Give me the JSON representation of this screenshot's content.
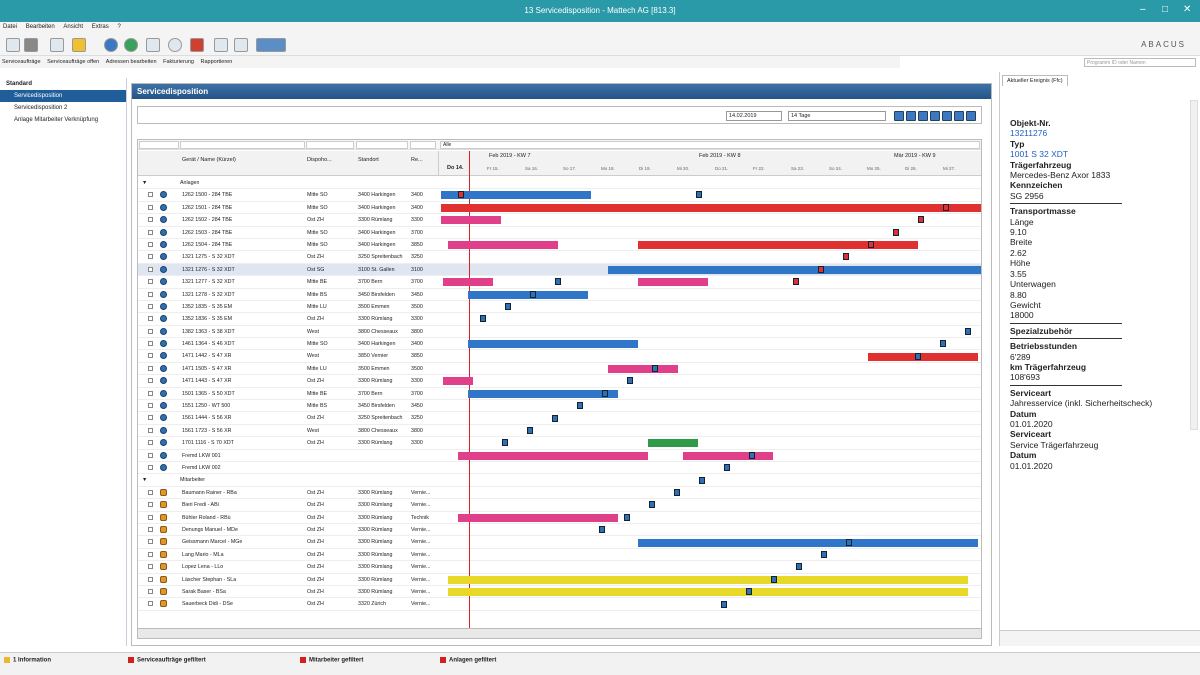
{
  "window": {
    "title": "13 Servicedisposition - Mattech AG [813.3]"
  },
  "menu": [
    "Datei",
    "Bearbeiten",
    "Ansicht",
    "Extras",
    "?"
  ],
  "actions": [
    "Serviceaufträge",
    "Serviceaufträge offen",
    "Adressen bearbeiten",
    "Fakturierung",
    "Rapportieren"
  ],
  "brand": {
    "name": "ABACUS",
    "search_placeholder": "Programm ID oder Namen"
  },
  "sidebar": {
    "header": "Standard",
    "items": [
      "Servicedisposition",
      "Servicedisposition 2",
      "Anlage Mitarbeiter Verknüpfung"
    ]
  },
  "panel": {
    "title": "Servicedisposition"
  },
  "filter": {
    "date": "14.02.2019",
    "range": "14 Tage",
    "alle": "Alle"
  },
  "grid": {
    "columns": [
      "Gerät / Name (Kürzel)",
      "Dispoho...",
      "Standort",
      "Re..."
    ],
    "weeks": [
      "Feb 2019 - KW 7",
      "Feb 2019 - KW 8",
      "Mär 2019 - KW 9"
    ],
    "today": "Do 14.",
    "days": [
      "Fr 15.",
      "Sa 16.",
      "So 17.",
      "Mo 18.",
      "Di 19.",
      "Mi 20.",
      "Do 21.",
      "Fr 22.",
      "Sa 23.",
      "So 24.",
      "Mo 25.",
      "Di 26.",
      "Mi 27."
    ],
    "groups": {
      "anlagen": "Anlagen",
      "mitarbeiter": "Mitarbeiter"
    },
    "anlagen": [
      [
        "1262 1500 - 284 TBE",
        "Mitte SO",
        "3400 Harkingen",
        "3400"
      ],
      [
        "1262 1501 - 284 TBE",
        "Mitte SO",
        "3400 Harkingen",
        "3400"
      ],
      [
        "1262 1502 - 284 TBE",
        "Ost ZH",
        "3300 Rümlang",
        "3300"
      ],
      [
        "1262 1503 - 284 TBE",
        "Mitte SO",
        "3400 Harkingen",
        "3700"
      ],
      [
        "1262 1504 - 284 TBE",
        "Mitte SO",
        "3400 Harkingen",
        "3850"
      ],
      [
        "1321 1275 - S 32 XDT",
        "Ost ZH",
        "3250 Spreitenbach",
        "3250"
      ],
      [
        "1321 1276 - S 32 XDT",
        "Ost SG",
        "3100 St. Gallen",
        "3100"
      ],
      [
        "1321 1277 - S 32 XDT",
        "Mitte BE",
        "3700 Bern",
        "3700"
      ],
      [
        "1321 1278 - S 32 XDT",
        "Mitte BS",
        "3450 Birsfelden",
        "3450"
      ],
      [
        "1352 1835 - S 35 EM",
        "Mitte LU",
        "3500 Emmen",
        "3500"
      ],
      [
        "1352 1836 - S 35 EM",
        "Ost ZH",
        "3300 Rümlang",
        "3300"
      ],
      [
        "1382 1363 - S 38 XDT",
        "West",
        "3800 Chesseaux",
        "3800"
      ],
      [
        "1461 1364 - S 46 XDT",
        "Mitte SO",
        "3400 Harkingen",
        "3400"
      ],
      [
        "1471 1442 - S 47 XR",
        "West",
        "3850 Vernier",
        "3850"
      ],
      [
        "1471 1505 - S 47 XR",
        "Mitte LU",
        "3500 Emmen",
        "3500"
      ],
      [
        "1471 1443 - S 47 XR",
        "Ost ZH",
        "3300 Rümlang",
        "3300"
      ],
      [
        "1501 1365 - S 50 XDT",
        "Mitte BE",
        "3700 Bern",
        "3700"
      ],
      [
        "1551 1250 - WT 500",
        "Mitte BS",
        "3450 Birsfelden",
        "3450"
      ],
      [
        "1561 1444 - S 56 XR",
        "Ost ZH",
        "3250 Spreitenbach",
        "3250"
      ],
      [
        "1561 1723 - S 56 XR",
        "West",
        "3800 Chesseaux",
        "3800"
      ],
      [
        "1701 1116 - S 70 XDT",
        "Ost ZH",
        "3300 Rümlang",
        "3300"
      ],
      [
        "Fremd LKW 001",
        "",
        "",
        ""
      ],
      [
        "Fremd LKW 002",
        "",
        "",
        ""
      ]
    ],
    "mitarbeiter": [
      [
        "Baumann Rainer - RBa",
        "Ost ZH",
        "3300 Rümlang",
        "Vernie..."
      ],
      [
        "Bieri Fredi - ABi",
        "Ost ZH",
        "3300 Rümlang",
        "Vernie..."
      ],
      [
        "Bühler Roland - RBü",
        "Ost ZH",
        "3300 Rümlang",
        "Technik"
      ],
      [
        "Denungs Manuel - MDe",
        "Ost ZH",
        "3300 Rümlang",
        "Vernie..."
      ],
      [
        "Geissmann Marcel - MGe",
        "Ost ZH",
        "3300 Rümlang",
        "Vernie..."
      ],
      [
        "Lang Mario - MLa",
        "Ost ZH",
        "3300 Rümlang",
        "Vernie..."
      ],
      [
        "Lopez Lena - LLo",
        "Ost ZH",
        "3300 Rümlang",
        "Vernie..."
      ],
      [
        "Läscher Stephan - SLa",
        "Ost ZH",
        "3300 Rümlang",
        "Vernie..."
      ],
      [
        "Sarak Baser - BSa",
        "Ost ZH",
        "3300 Rümlang",
        "Vernie..."
      ],
      [
        "Sauerbeck Didi - DSe",
        "Ost ZH",
        "3320 Zürich",
        "Vernie..."
      ]
    ]
  },
  "details": {
    "tab": "Aktueller Ereignis (Ffc)",
    "fields": [
      {
        "label": "Objekt-Nr.",
        "value": "13211276",
        "style": "blue"
      },
      {
        "label": "Typ",
        "value": "1001 S 32 XDT",
        "style": "blue"
      },
      {
        "label": "Trägerfahrzeug",
        "value": "Mercedes-Benz Axor 1833"
      },
      {
        "label": "Kennzeichen",
        "value": "SG 2956"
      }
    ],
    "transport_label": "Transportmasse",
    "transport": [
      "Länge",
      "9.10",
      "Breite",
      "2.62",
      "Höhe",
      "3.55",
      "Unterwagen",
      "8.80",
      "Gewicht",
      "18000"
    ],
    "zubehoer": "Spezialzubehör",
    "betrieb_label": "Betriebsstunden",
    "betrieb_value": "6'289",
    "km_label": "km Trägerfahrzeug",
    "km_value": "108'693",
    "service1_label": "Serviceart",
    "service1_value": "Jahresservice (inkl. Sicherheitscheck)",
    "datum1_label": "Datum",
    "datum1_value": "01.01.2020",
    "service2_label": "Serviceart",
    "service2_value": "Service Trägerfahrzeug",
    "datum2_label": "Datum",
    "datum2_value": "01.01.2020"
  },
  "status": {
    "info": "1 Information",
    "s1": "Serviceaufträge gefiltert",
    "s2": "Mitarbeiter gefiltert",
    "s3": "Anlagen gefiltert"
  },
  "colors": {
    "titlebar": "#2a9aa8",
    "panel": "#245487",
    "red": "#e03030",
    "pink": "#e0408a",
    "blue": "#2f75c8",
    "yellow": "#e8d828",
    "green": "#2f9a4a"
  }
}
